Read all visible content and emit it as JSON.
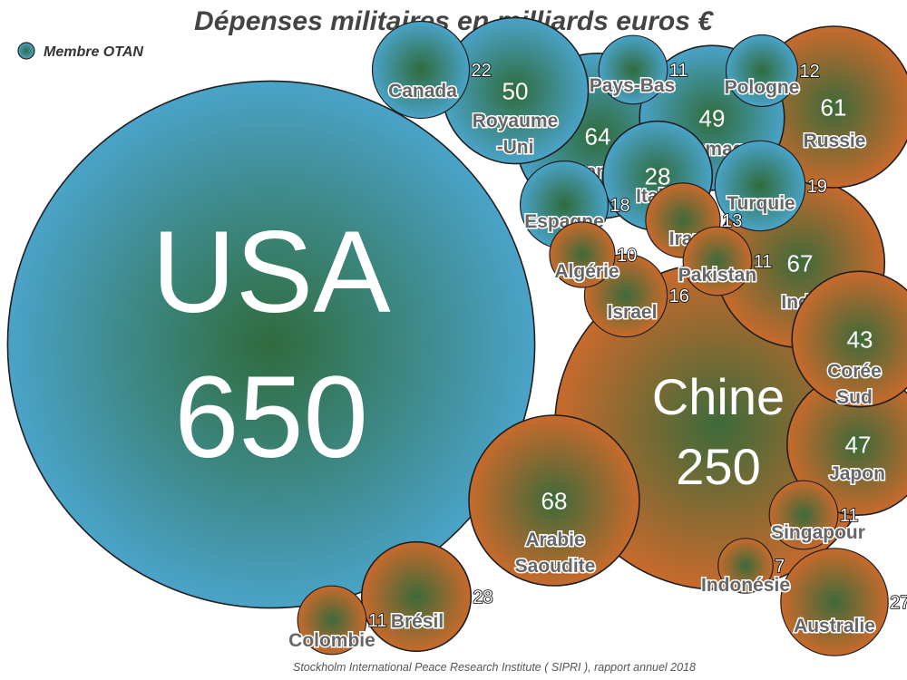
{
  "chart_data": {
    "type": "bubble",
    "title": "Dépenses militaires en milliards euros €",
    "legend": {
      "label": "Membre OTAN",
      "position": "top-left"
    },
    "source": "Stockholm International Peace Research Institute ( SIPRI ), rapport annuel 2018",
    "colors": {
      "otan": "#4aa3c8",
      "otan_core": "#2f6b3c",
      "other": "#c86a2c",
      "other_core": "#3d6a3a"
    },
    "points": [
      {
        "id": "usa",
        "name": "USA",
        "value": 650,
        "otan": true
      },
      {
        "id": "chine",
        "name": "Chine",
        "value": 250,
        "otan": false
      },
      {
        "id": "inde",
        "name": "Inde",
        "value": 67,
        "otan": false
      },
      {
        "id": "arabie",
        "name": "Arabie Saoudite",
        "value": 68,
        "otan": false
      },
      {
        "id": "france",
        "name": "France",
        "value": 64,
        "otan": true
      },
      {
        "id": "russie",
        "name": "Russie",
        "value": 61,
        "otan": false
      },
      {
        "id": "royaume",
        "name": "Royaume -Uni",
        "value": 50,
        "otan": true
      },
      {
        "id": "allemagne",
        "name": "Allemagne",
        "value": 49,
        "otan": true
      },
      {
        "id": "japon",
        "name": "Japon",
        "value": 47,
        "otan": false
      },
      {
        "id": "coree",
        "name": "Corée Sud",
        "value": 43,
        "otan": false
      },
      {
        "id": "italie",
        "name": "Italie",
        "value": 28,
        "otan": true
      },
      {
        "id": "bresil",
        "name": "Brésil",
        "value": 28,
        "otan": false
      },
      {
        "id": "australie",
        "name": "Australie",
        "value": 27,
        "otan": false
      },
      {
        "id": "canada",
        "name": "Canada",
        "value": 22,
        "otan": true
      },
      {
        "id": "turquie",
        "name": "Turquie",
        "value": 19,
        "otan": true
      },
      {
        "id": "espagne",
        "name": "Espagne",
        "value": 18,
        "otan": true
      },
      {
        "id": "israel",
        "name": "Israel",
        "value": 16,
        "otan": false
      },
      {
        "id": "iran",
        "name": "Iran",
        "value": 13,
        "otan": false
      },
      {
        "id": "pologne",
        "name": "Pologne",
        "value": 12,
        "otan": true
      },
      {
        "id": "paysbas",
        "name": "Pays-Bas",
        "value": 11,
        "otan": true
      },
      {
        "id": "pakistan",
        "name": "Pakistan",
        "value": 11,
        "otan": false
      },
      {
        "id": "singapour",
        "name": "Singapour",
        "value": 11,
        "otan": false
      },
      {
        "id": "colombie",
        "name": "Colombie",
        "value": 11,
        "otan": false
      },
      {
        "id": "algerie",
        "name": "Algérie",
        "value": 10,
        "otan": false
      },
      {
        "id": "indonesie",
        "name": "Indonésie",
        "value": 7,
        "otan": false
      }
    ]
  }
}
